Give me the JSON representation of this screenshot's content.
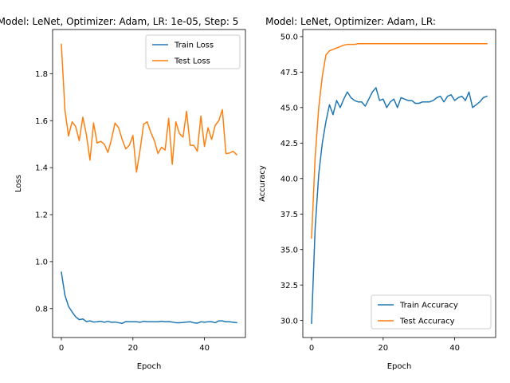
{
  "colors": {
    "blue": "#1f77b4",
    "orange": "#ff7f0e"
  },
  "chart_data": [
    {
      "type": "line",
      "title": "Model: LeNet, Optimizer: Adam, LR: 1e-05, Step: 5",
      "xlabel": "Epoch",
      "ylabel": "Loss",
      "xlim": [
        -2.45,
        51.45
      ],
      "ylim": [
        0.677,
        1.988
      ],
      "xticks": [
        0,
        20,
        40
      ],
      "xtick_labels": [
        "0",
        "20",
        "40"
      ],
      "yticks": [
        0.8,
        1.0,
        1.2,
        1.4,
        1.6,
        1.8
      ],
      "ytick_labels": [
        "0.8",
        "1.0",
        "1.2",
        "1.4",
        "1.6",
        "1.8"
      ],
      "legend": "upper right",
      "series": [
        {
          "name": "Train Loss",
          "color": "#1f77b4",
          "x": [
            0,
            1,
            2,
            3,
            4,
            5,
            6,
            7,
            8,
            9,
            10,
            11,
            12,
            13,
            14,
            15,
            16,
            17,
            18,
            19,
            20,
            21,
            22,
            23,
            24,
            25,
            26,
            27,
            28,
            29,
            30,
            31,
            32,
            33,
            34,
            35,
            36,
            37,
            38,
            39,
            40,
            41,
            42,
            43,
            44,
            45,
            46,
            47,
            48,
            49
          ],
          "y": [
            0.955,
            0.857,
            0.81,
            0.786,
            0.765,
            0.753,
            0.756,
            0.745,
            0.748,
            0.743,
            0.744,
            0.746,
            0.742,
            0.746,
            0.742,
            0.743,
            0.74,
            0.737,
            0.745,
            0.744,
            0.744,
            0.744,
            0.742,
            0.746,
            0.744,
            0.744,
            0.744,
            0.744,
            0.746,
            0.744,
            0.745,
            0.743,
            0.74,
            0.74,
            0.741,
            0.743,
            0.744,
            0.74,
            0.738,
            0.744,
            0.742,
            0.744,
            0.744,
            0.74,
            0.748,
            0.748,
            0.744,
            0.744,
            0.742,
            0.74
          ]
        },
        {
          "name": "Test Loss",
          "color": "#ff7f0e",
          "x": [
            0,
            1,
            2,
            3,
            4,
            5,
            6,
            7,
            8,
            9,
            10,
            11,
            12,
            13,
            14,
            15,
            16,
            17,
            18,
            19,
            20,
            21,
            22,
            23,
            24,
            25,
            26,
            27,
            28,
            29,
            30,
            31,
            32,
            33,
            34,
            35,
            36,
            37,
            38,
            39,
            40,
            41,
            42,
            43,
            44,
            45,
            46,
            47,
            48,
            49
          ],
          "y": [
            1.925,
            1.645,
            1.535,
            1.595,
            1.575,
            1.515,
            1.615,
            1.54,
            1.432,
            1.59,
            1.505,
            1.512,
            1.5,
            1.465,
            1.52,
            1.59,
            1.57,
            1.52,
            1.48,
            1.495,
            1.537,
            1.381,
            1.475,
            1.585,
            1.595,
            1.55,
            1.515,
            1.46,
            1.487,
            1.475,
            1.61,
            1.414,
            1.595,
            1.545,
            1.53,
            1.64,
            1.495,
            1.495,
            1.47,
            1.62,
            1.49,
            1.57,
            1.52,
            1.58,
            1.6,
            1.647,
            1.46,
            1.462,
            1.47,
            1.455
          ]
        }
      ]
    },
    {
      "type": "line",
      "title": "Model: LeNet, Optimizer: Adam, LR:",
      "xlabel": "Epoch",
      "ylabel": "Accuracy",
      "xlim": [
        -2.45,
        51.45
      ],
      "ylim": [
        28.8,
        50.5
      ],
      "xticks": [
        0,
        20,
        40
      ],
      "xtick_labels": [
        "0",
        "20",
        "40"
      ],
      "yticks": [
        30.0,
        32.5,
        35.0,
        37.5,
        40.0,
        42.5,
        45.0,
        47.5,
        50.0
      ],
      "ytick_labels": [
        "30.0",
        "32.5",
        "35.0",
        "37.5",
        "40.0",
        "42.5",
        "45.0",
        "47.5",
        "50.0"
      ],
      "legend": "lower right",
      "series": [
        {
          "name": "Train Accuracy",
          "color": "#1f77b4",
          "x": [
            0,
            1,
            2,
            3,
            4,
            5,
            6,
            7,
            8,
            9,
            10,
            11,
            12,
            13,
            14,
            15,
            16,
            17,
            18,
            19,
            20,
            21,
            22,
            23,
            24,
            25,
            26,
            27,
            28,
            29,
            30,
            31,
            32,
            33,
            34,
            35,
            36,
            37,
            38,
            39,
            40,
            41,
            42,
            43,
            44,
            45,
            46,
            47,
            48,
            49
          ],
          "y": [
            29.8,
            36.5,
            40.3,
            42.5,
            44.0,
            45.2,
            44.5,
            45.5,
            45.0,
            45.6,
            46.1,
            45.7,
            45.5,
            45.4,
            45.4,
            45.1,
            45.6,
            46.1,
            46.4,
            45.5,
            45.6,
            45.0,
            45.4,
            45.6,
            45.0,
            45.7,
            45.6,
            45.5,
            45.5,
            45.3,
            45.3,
            45.4,
            45.4,
            45.4,
            45.5,
            45.7,
            45.8,
            45.4,
            45.8,
            45.9,
            45.5,
            45.7,
            45.8,
            45.5,
            46.1,
            45.0,
            45.2,
            45.4,
            45.7,
            45.8
          ]
        },
        {
          "name": "Test Accuracy",
          "color": "#ff7f0e",
          "x": [
            0,
            1,
            2,
            3,
            4,
            5,
            6,
            7,
            8,
            9,
            10,
            11,
            12,
            13,
            14,
            15,
            16,
            17,
            18,
            19,
            20,
            21,
            22,
            23,
            24,
            25,
            26,
            27,
            28,
            29,
            30,
            31,
            32,
            33,
            34,
            35,
            36,
            37,
            38,
            39,
            40,
            41,
            42,
            43,
            44,
            45,
            46,
            47,
            48,
            49
          ],
          "y": [
            35.8,
            41.5,
            45.0,
            47.2,
            48.7,
            49.0,
            49.1,
            49.2,
            49.3,
            49.4,
            49.45,
            49.45,
            49.45,
            49.5,
            49.5,
            49.5,
            49.5,
            49.5,
            49.5,
            49.5,
            49.5,
            49.5,
            49.5,
            49.5,
            49.5,
            49.5,
            49.5,
            49.5,
            49.5,
            49.5,
            49.5,
            49.5,
            49.5,
            49.5,
            49.5,
            49.5,
            49.5,
            49.5,
            49.5,
            49.5,
            49.5,
            49.5,
            49.5,
            49.5,
            49.5,
            49.5,
            49.5,
            49.5,
            49.5,
            49.5
          ]
        }
      ]
    }
  ]
}
